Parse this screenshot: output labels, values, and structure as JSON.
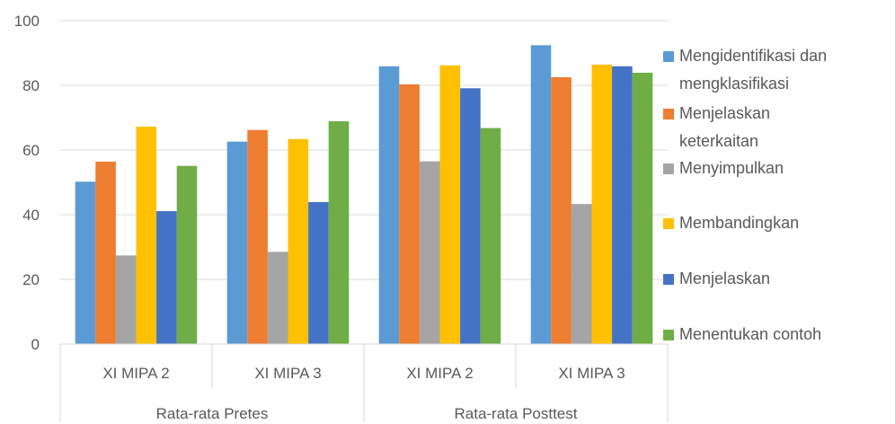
{
  "chart_data": {
    "type": "bar",
    "categories": [
      "XI MIPA 2",
      "XI MIPA 3",
      "XI MIPA 2",
      "XI MIPA 3"
    ],
    "groups": [
      {
        "label": "Rata-rata Pretes",
        "categories": [
          "XI MIPA 2",
          "XI MIPA 3"
        ]
      },
      {
        "label": "Rata-rata Posttest",
        "categories": [
          "XI MIPA 2",
          "XI MIPA 3"
        ]
      }
    ],
    "series": [
      {
        "name": "Mengidentifikasi dan mengklasifikasi",
        "color": "#5B9BD5",
        "values": [
          50.2,
          62.6,
          85.9,
          92.4
        ]
      },
      {
        "name": "Menjelaskan keterkaitan",
        "color": "#ED7D31",
        "values": [
          56.4,
          66.2,
          80.3,
          82.5
        ]
      },
      {
        "name": "Menyimpulkan",
        "color": "#A5A5A5",
        "values": [
          27.4,
          28.5,
          56.5,
          43.3
        ]
      },
      {
        "name": "Membandingkan",
        "color": "#FFC000",
        "values": [
          67.2,
          63.4,
          86.2,
          86.4
        ]
      },
      {
        "name": "Menjelaskan",
        "color": "#4472C4",
        "values": [
          41.1,
          43.9,
          79.1,
          85.9
        ]
      },
      {
        "name": "Menentukan contoh",
        "color": "#70AD47",
        "values": [
          55.1,
          68.9,
          66.8,
          83.9
        ]
      }
    ],
    "ylim": [
      0,
      100
    ],
    "yticks": [
      "0",
      "20",
      "40",
      "60",
      "80",
      "100"
    ],
    "grid": true,
    "legend_position": "right",
    "title": "",
    "xlabel": "",
    "ylabel": ""
  }
}
